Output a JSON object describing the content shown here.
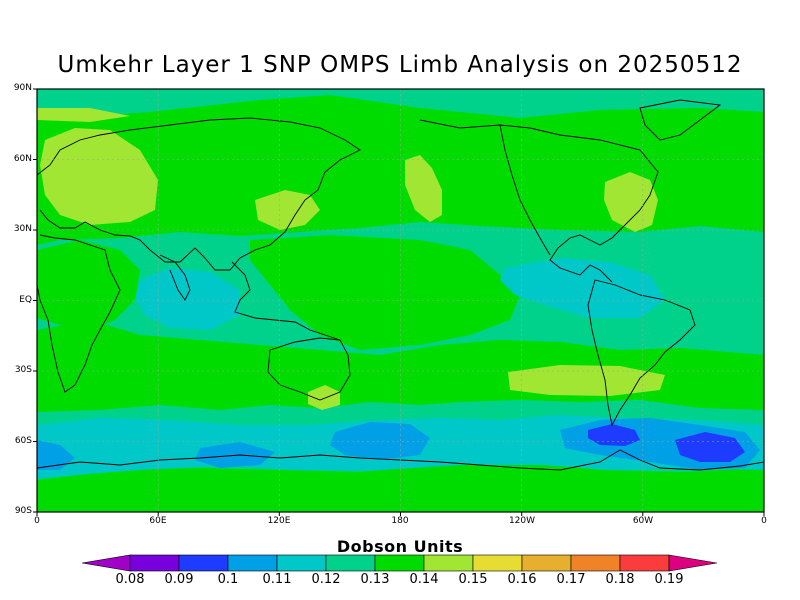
{
  "title": "Umkehr Layer 1 SNP OMPS Limb Analysis on 20250512",
  "lat_labels": [
    "90N",
    "60N",
    "30N",
    "EQ",
    "30S",
    "60S",
    "90S"
  ],
  "lon_labels": [
    "0",
    "60E",
    "120E",
    "180",
    "120W",
    "60W",
    "0"
  ],
  "colorbar": {
    "title": "Dobson Units",
    "levels": [
      "0.08",
      "0.09",
      "0.1",
      "0.11",
      "0.12",
      "0.13",
      "0.14",
      "0.15",
      "0.16",
      "0.17",
      "0.18",
      "0.19"
    ],
    "colors": [
      "#a000c8",
      "#7800dc",
      "#1e3cff",
      "#00a0e6",
      "#00c8c8",
      "#00d28c",
      "#00dc00",
      "#a0e632",
      "#e6dc32",
      "#e6af2d",
      "#f08228",
      "#fa3c3c",
      "#dc0080"
    ]
  },
  "field_colors": {
    "background": "#00d28c",
    "green_band": "#00dc00",
    "light_green": "#a0e632",
    "cyan": "#00c8c8",
    "blue": "#00a0e6",
    "dark_blue": "#1e3cff"
  }
}
